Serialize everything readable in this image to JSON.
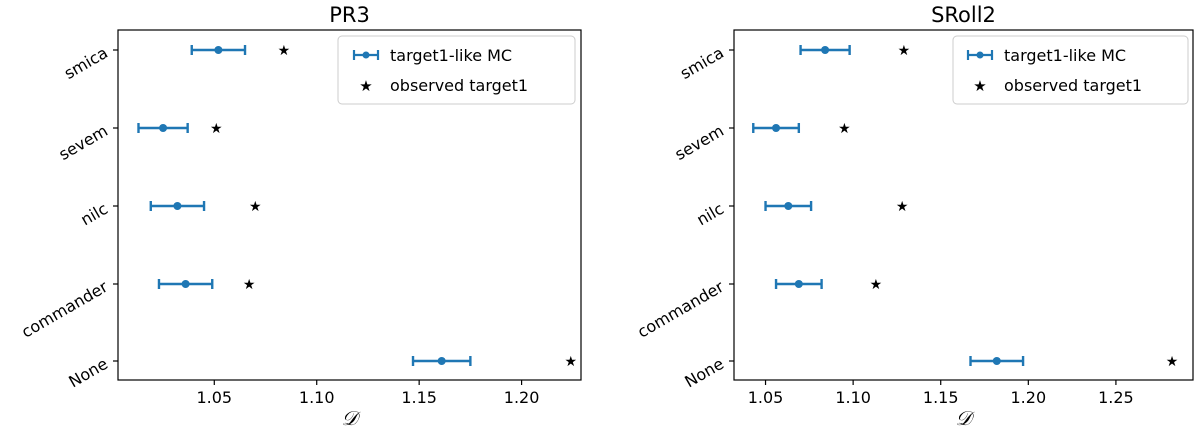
{
  "chart_data": [
    {
      "type": "errorbar",
      "title": "PR3",
      "xlabel": "𝒟",
      "ylabel": "",
      "xlim": [
        1.003,
        1.229
      ],
      "categories": [
        "smica",
        "sevem",
        "nilc",
        "commander",
        "None"
      ],
      "xticks": [
        1.05,
        1.1,
        1.15,
        1.2
      ],
      "xtick_labels": [
        "1.05",
        "1.10",
        "1.15",
        "1.20"
      ],
      "series": [
        {
          "name": "target1-like MC",
          "marker": "circle-errorbar",
          "color": "#1f77b4",
          "values": [
            1.052,
            1.025,
            1.032,
            1.036,
            1.161
          ],
          "errors": [
            0.013,
            0.012,
            0.013,
            0.013,
            0.014
          ]
        },
        {
          "name": "observed target1",
          "marker": "star",
          "color": "#ff7f0e",
          "values": [
            1.084,
            1.051,
            1.07,
            1.067,
            1.224
          ]
        }
      ],
      "legend": {
        "position": "top-right",
        "entries": [
          "target1-like MC",
          "observed target1"
        ]
      }
    },
    {
      "type": "errorbar",
      "title": "SRoll2",
      "xlabel": "𝒟",
      "ylabel": "",
      "xlim": [
        1.032,
        1.294
      ],
      "categories": [
        "smica",
        "sevem",
        "nilc",
        "commander",
        "None"
      ],
      "xticks": [
        1.05,
        1.1,
        1.15,
        1.2,
        1.25
      ],
      "xtick_labels": [
        "1.05",
        "1.10",
        "1.15",
        "1.20",
        "1.25"
      ],
      "series": [
        {
          "name": "target1-like MC",
          "marker": "circle-errorbar",
          "color": "#1f77b4",
          "values": [
            1.084,
            1.056,
            1.063,
            1.069,
            1.182
          ],
          "errors": [
            0.014,
            0.013,
            0.013,
            0.013,
            0.015
          ]
        },
        {
          "name": "observed target1",
          "marker": "star",
          "color": "#ff7f0e",
          "values": [
            1.129,
            1.095,
            1.128,
            1.113,
            1.282
          ]
        }
      ],
      "legend": {
        "position": "top-right",
        "entries": [
          "target1-like MC",
          "observed target1"
        ]
      }
    }
  ]
}
